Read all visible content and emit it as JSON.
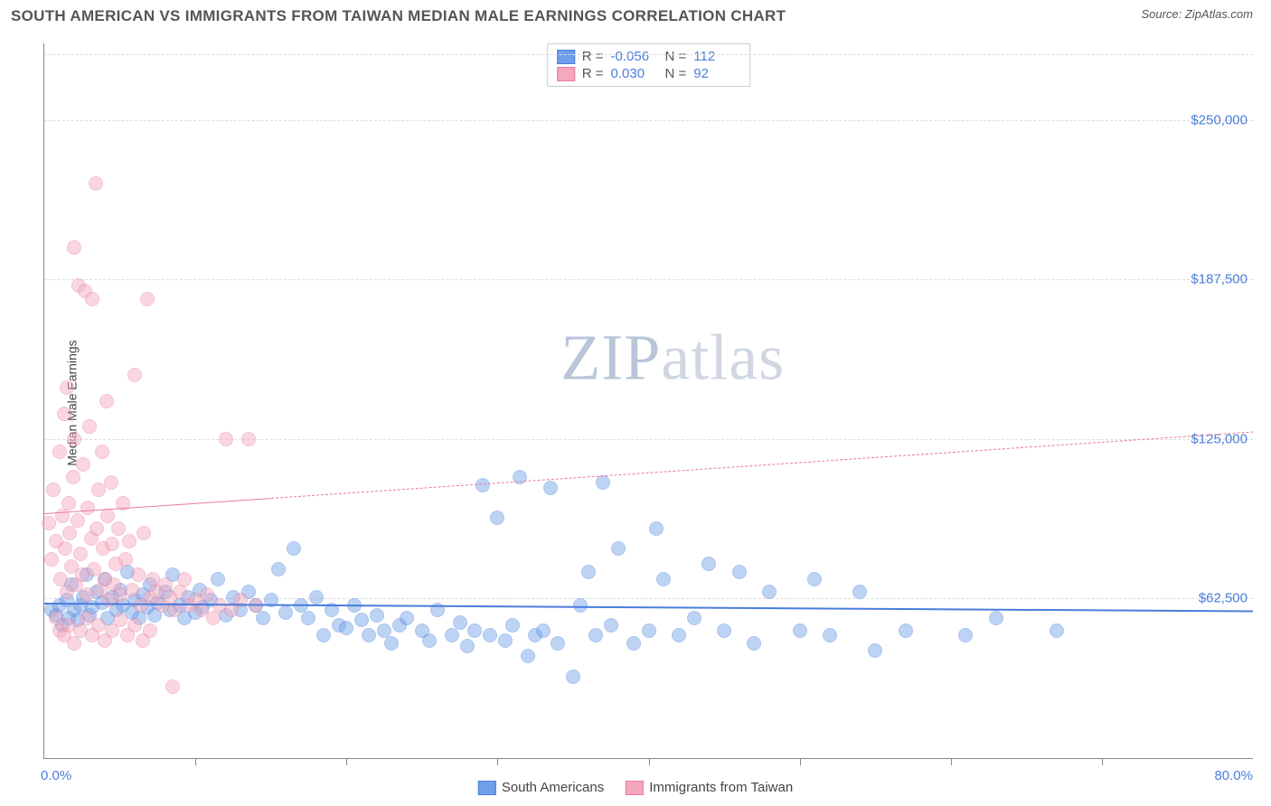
{
  "header": {
    "title": "SOUTH AMERICAN VS IMMIGRANTS FROM TAIWAN MEDIAN MALE EARNINGS CORRELATION CHART",
    "source_prefix": "Source: ",
    "source_name": "ZipAtlas.com"
  },
  "chart": {
    "type": "scatter",
    "ylabel": "Median Male Earnings",
    "xlim": [
      0,
      80
    ],
    "ylim": [
      0,
      280000
    ],
    "y_ticks": [
      {
        "value": 62500,
        "label": "$62,500"
      },
      {
        "value": 125000,
        "label": "$125,000"
      },
      {
        "value": 187500,
        "label": "$187,500"
      },
      {
        "value": 250000,
        "label": "$250,000"
      }
    ],
    "x_ticks": [
      10,
      20,
      30,
      40,
      50,
      60,
      70
    ],
    "x_axis_labels": {
      "left": "0.0%",
      "right": "80.0%"
    },
    "grid_color": "#dddddd",
    "background_color": "#ffffff",
    "point_radius": 8,
    "point_opacity": 0.45,
    "series": [
      {
        "name": "South Americans",
        "color": "#6f9fe8",
        "stroke": "#4a7ddb",
        "r_value": "-0.056",
        "n_value": "112",
        "trend": {
          "x1": 0,
          "y1": 61000,
          "x2": 80,
          "y2": 58000,
          "dashed": false,
          "width": 2.5,
          "solid_until_x": 80
        },
        "points": [
          [
            0.5,
            58000
          ],
          [
            0.8,
            56000
          ],
          [
            1.0,
            60000
          ],
          [
            1.2,
            52000
          ],
          [
            1.5,
            62000
          ],
          [
            1.6,
            55000
          ],
          [
            1.8,
            68000
          ],
          [
            2.0,
            58000
          ],
          [
            2.2,
            54000
          ],
          [
            2.4,
            60000
          ],
          [
            2.6,
            63000
          ],
          [
            2.8,
            72000
          ],
          [
            3.0,
            56000
          ],
          [
            3.2,
            59000
          ],
          [
            3.5,
            65000
          ],
          [
            3.8,
            61000
          ],
          [
            4.0,
            70000
          ],
          [
            4.2,
            55000
          ],
          [
            4.5,
            63000
          ],
          [
            4.8,
            58000
          ],
          [
            5.0,
            66000
          ],
          [
            5.2,
            60000
          ],
          [
            5.5,
            73000
          ],
          [
            5.8,
            57000
          ],
          [
            6.0,
            62000
          ],
          [
            6.3,
            55000
          ],
          [
            6.5,
            64000
          ],
          [
            6.8,
            59000
          ],
          [
            7.0,
            68000
          ],
          [
            7.3,
            56000
          ],
          [
            7.5,
            61000
          ],
          [
            8.0,
            65000
          ],
          [
            8.3,
            58000
          ],
          [
            8.5,
            72000
          ],
          [
            9.0,
            60000
          ],
          [
            9.3,
            55000
          ],
          [
            9.5,
            63000
          ],
          [
            10.0,
            57000
          ],
          [
            10.3,
            66000
          ],
          [
            10.5,
            59000
          ],
          [
            11.0,
            62000
          ],
          [
            11.5,
            70000
          ],
          [
            12.0,
            56000
          ],
          [
            12.5,
            63000
          ],
          [
            13.0,
            58000
          ],
          [
            13.5,
            65000
          ],
          [
            14.0,
            60000
          ],
          [
            14.5,
            55000
          ],
          [
            15.0,
            62000
          ],
          [
            15.5,
            74000
          ],
          [
            16.0,
            57000
          ],
          [
            16.5,
            82000
          ],
          [
            17.0,
            60000
          ],
          [
            17.5,
            55000
          ],
          [
            18.0,
            63000
          ],
          [
            18.5,
            48000
          ],
          [
            19.0,
            58000
          ],
          [
            19.5,
            52000
          ],
          [
            20.0,
            51000
          ],
          [
            20.5,
            60000
          ],
          [
            21.0,
            54000
          ],
          [
            21.5,
            48000
          ],
          [
            22.0,
            56000
          ],
          [
            22.5,
            50000
          ],
          [
            23.0,
            45000
          ],
          [
            23.5,
            52000
          ],
          [
            24.0,
            55000
          ],
          [
            25.0,
            50000
          ],
          [
            25.5,
            46000
          ],
          [
            26.0,
            58000
          ],
          [
            27.0,
            48000
          ],
          [
            27.5,
            53000
          ],
          [
            28.0,
            44000
          ],
          [
            28.5,
            50000
          ],
          [
            29.0,
            107000
          ],
          [
            29.5,
            48000
          ],
          [
            30.0,
            94000
          ],
          [
            30.5,
            46000
          ],
          [
            31.0,
            52000
          ],
          [
            31.5,
            110000
          ],
          [
            32.0,
            40000
          ],
          [
            32.5,
            48000
          ],
          [
            33.0,
            50000
          ],
          [
            33.5,
            106000
          ],
          [
            34.0,
            45000
          ],
          [
            35.0,
            32000
          ],
          [
            35.5,
            60000
          ],
          [
            36.0,
            73000
          ],
          [
            36.5,
            48000
          ],
          [
            37.0,
            108000
          ],
          [
            37.5,
            52000
          ],
          [
            38.0,
            82000
          ],
          [
            39.0,
            45000
          ],
          [
            40.0,
            50000
          ],
          [
            40.5,
            90000
          ],
          [
            41.0,
            70000
          ],
          [
            42.0,
            48000
          ],
          [
            43.0,
            55000
          ],
          [
            44.0,
            76000
          ],
          [
            45.0,
            50000
          ],
          [
            46.0,
            73000
          ],
          [
            47.0,
            45000
          ],
          [
            48.0,
            65000
          ],
          [
            50.0,
            50000
          ],
          [
            51.0,
            70000
          ],
          [
            52.0,
            48000
          ],
          [
            54.0,
            65000
          ],
          [
            55.0,
            42000
          ],
          [
            57.0,
            50000
          ],
          [
            61.0,
            48000
          ],
          [
            63.0,
            55000
          ],
          [
            67.0,
            50000
          ]
        ]
      },
      {
        "name": "Immigrants from Taiwan",
        "color": "#f4a8bb",
        "stroke": "#e87a9a",
        "r_value": "0.030",
        "n_value": "92",
        "trend": {
          "x1": 0,
          "y1": 96000,
          "x2": 80,
          "y2": 128000,
          "dashed": true,
          "width": 1.5,
          "solid_until_x": 15
        },
        "points": [
          [
            0.3,
            92000
          ],
          [
            0.5,
            78000
          ],
          [
            0.6,
            105000
          ],
          [
            0.8,
            85000
          ],
          [
            1.0,
            120000
          ],
          [
            1.1,
            70000
          ],
          [
            1.2,
            95000
          ],
          [
            1.3,
            135000
          ],
          [
            1.4,
            82000
          ],
          [
            1.5,
            65000
          ],
          [
            1.6,
            100000
          ],
          [
            1.7,
            88000
          ],
          [
            1.8,
            75000
          ],
          [
            1.9,
            110000
          ],
          [
            2.0,
            125000
          ],
          [
            2.1,
            68000
          ],
          [
            2.2,
            93000
          ],
          [
            2.3,
            185000
          ],
          [
            2.4,
            80000
          ],
          [
            2.5,
            72000
          ],
          [
            2.6,
            115000
          ],
          [
            2.7,
            183000
          ],
          [
            2.8,
            64000
          ],
          [
            2.9,
            98000
          ],
          [
            3.0,
            130000
          ],
          [
            3.1,
            86000
          ],
          [
            3.2,
            180000
          ],
          [
            3.3,
            74000
          ],
          [
            3.4,
            225000
          ],
          [
            3.5,
            90000
          ],
          [
            3.6,
            105000
          ],
          [
            3.7,
            66000
          ],
          [
            3.8,
            120000
          ],
          [
            3.9,
            82000
          ],
          [
            4.0,
            70000
          ],
          [
            4.1,
            140000
          ],
          [
            4.2,
            95000
          ],
          [
            4.3,
            62000
          ],
          [
            4.4,
            108000
          ],
          [
            4.5,
            84000
          ],
          [
            4.6,
            68000
          ],
          [
            4.7,
            76000
          ],
          [
            4.9,
            90000
          ],
          [
            5.0,
            64000
          ],
          [
            5.2,
            100000
          ],
          [
            5.4,
            78000
          ],
          [
            5.6,
            85000
          ],
          [
            5.8,
            66000
          ],
          [
            6.0,
            150000
          ],
          [
            6.2,
            72000
          ],
          [
            6.4,
            60000
          ],
          [
            6.6,
            88000
          ],
          [
            6.8,
            180000
          ],
          [
            7.0,
            63000
          ],
          [
            7.2,
            70000
          ],
          [
            7.4,
            65000
          ],
          [
            7.8,
            60000
          ],
          [
            8.0,
            68000
          ],
          [
            8.3,
            63000
          ],
          [
            8.6,
            58000
          ],
          [
            9.0,
            65000
          ],
          [
            9.3,
            70000
          ],
          [
            9.6,
            60000
          ],
          [
            10.0,
            62000
          ],
          [
            10.4,
            58000
          ],
          [
            10.8,
            64000
          ],
          [
            11.2,
            55000
          ],
          [
            11.6,
            60000
          ],
          [
            12.0,
            125000
          ],
          [
            12.4,
            58000
          ],
          [
            13.0,
            62000
          ],
          [
            13.5,
            125000
          ],
          [
            14.0,
            60000
          ],
          [
            8.5,
            28000
          ],
          [
            2.0,
            200000
          ],
          [
            1.5,
            145000
          ],
          [
            0.8,
            55000
          ],
          [
            1.0,
            50000
          ],
          [
            1.3,
            48000
          ],
          [
            1.6,
            52000
          ],
          [
            2.0,
            45000
          ],
          [
            2.4,
            50000
          ],
          [
            2.8,
            55000
          ],
          [
            3.2,
            48000
          ],
          [
            3.6,
            52000
          ],
          [
            4.0,
            46000
          ],
          [
            4.5,
            50000
          ],
          [
            5.0,
            54000
          ],
          [
            5.5,
            48000
          ],
          [
            6.0,
            52000
          ],
          [
            6.5,
            46000
          ],
          [
            7.0,
            50000
          ]
        ]
      }
    ]
  },
  "legend": {
    "series1": "South Americans",
    "series2": "Immigrants from Taiwan"
  },
  "watermark": {
    "zip": "ZIP",
    "atlas": "atlas"
  }
}
